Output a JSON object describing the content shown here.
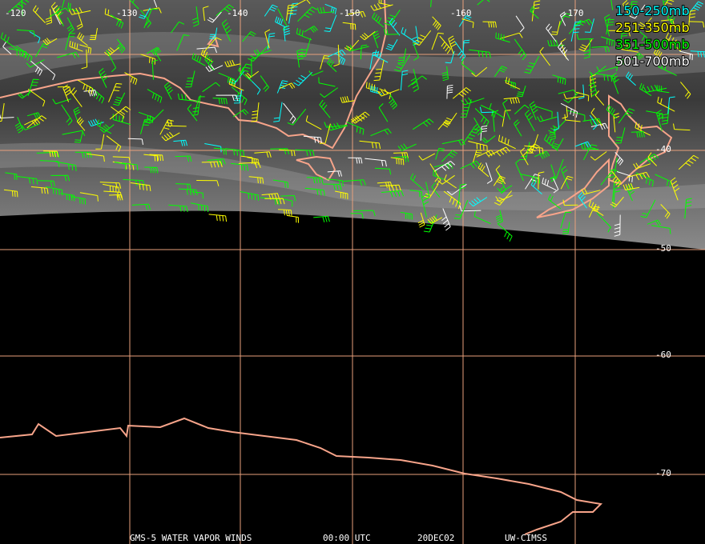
{
  "map": {
    "longitude_labels": [
      "-120",
      "-130",
      "-140",
      "-150",
      "-160",
      "-170"
    ],
    "latitude_labels": [
      "-40",
      "-50",
      "-60",
      "-70"
    ],
    "legend": [
      {
        "label": "150-250mb",
        "color": "#00ffff"
      },
      {
        "label": "251-350mb",
        "color": "#ffff00"
      },
      {
        "label": "351-500mb",
        "color": "#00ff00"
      },
      {
        "label": "501-700mb",
        "color": "#ffffff"
      }
    ],
    "footer": [
      "GMS-5 WATER VAPOR WINDS",
      "00:00 UTC",
      "20DEC02",
      "UW-CIMSS"
    ]
  }
}
